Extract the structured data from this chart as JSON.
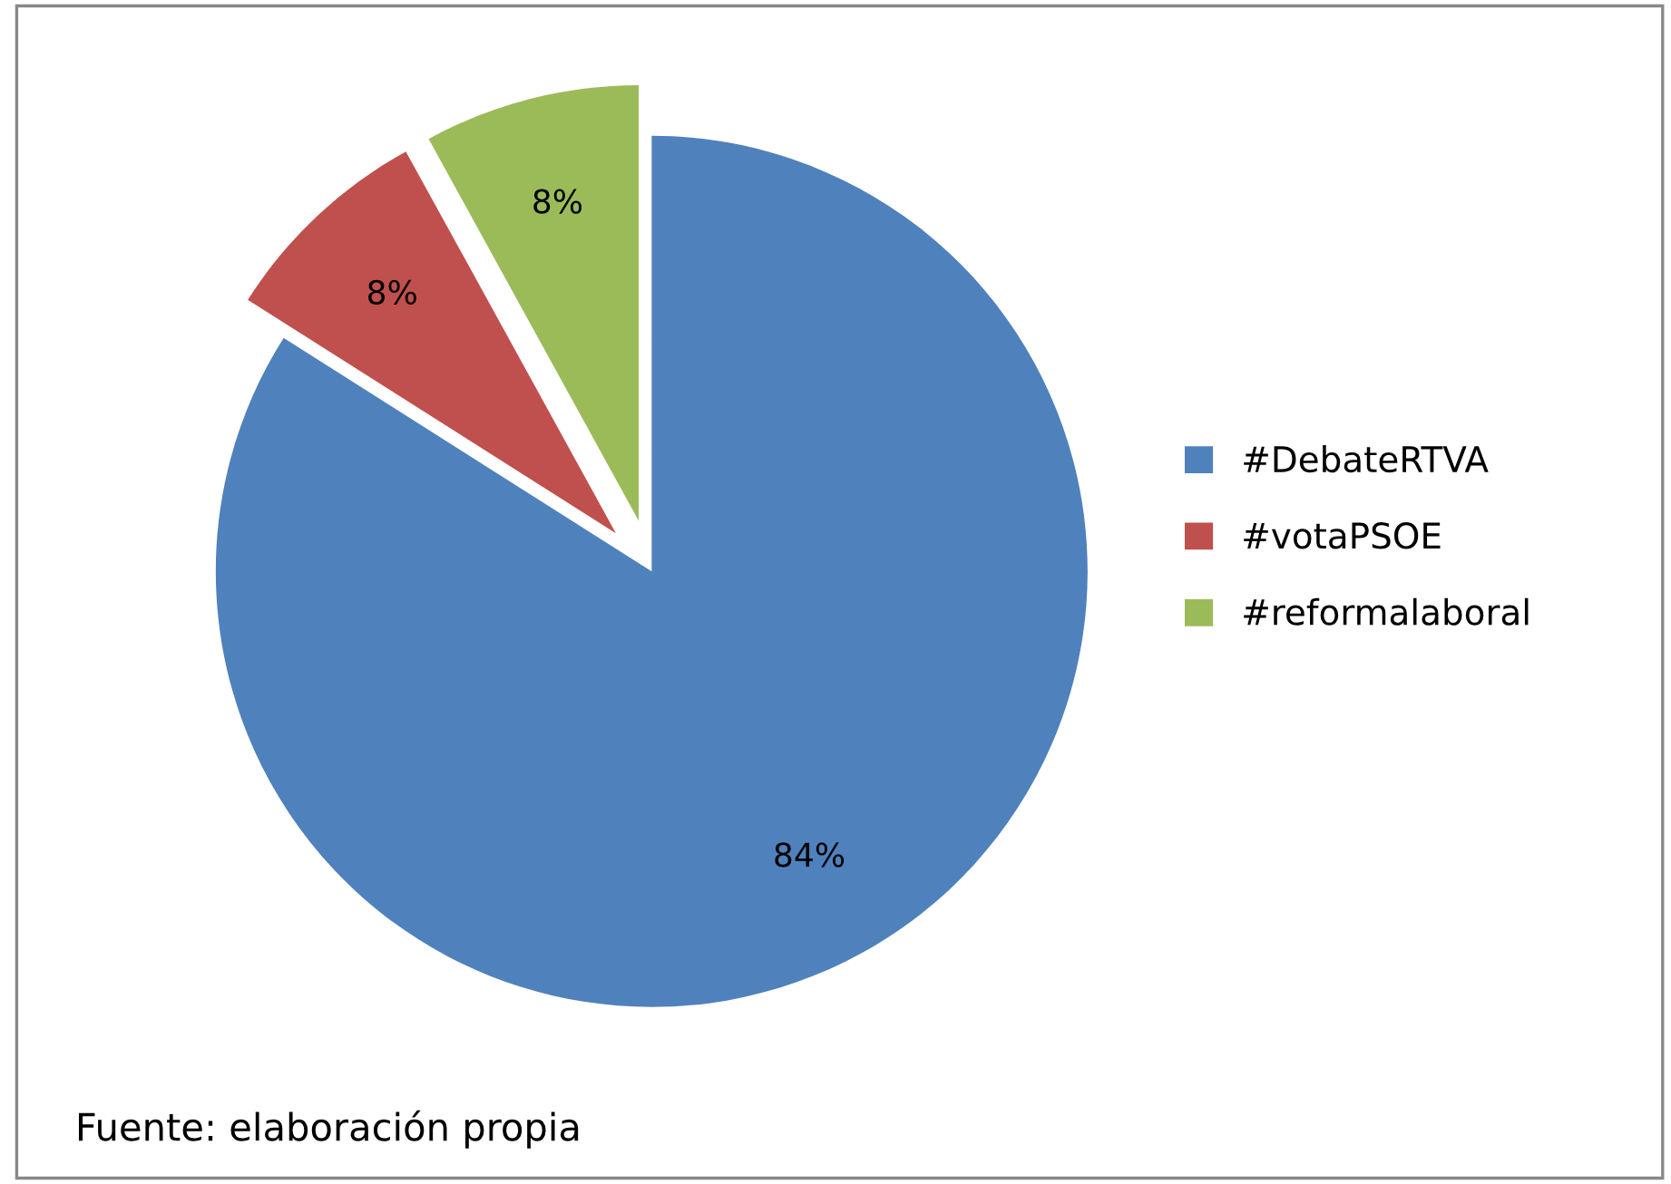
{
  "chart_data": {
    "type": "pie",
    "categories": [
      "#DebateRTVA",
      "#votaPSOE",
      "#reformalaboral"
    ],
    "values": [
      84,
      8,
      8
    ],
    "colors": [
      "#4f81bd",
      "#c0504d",
      "#9bbb59"
    ],
    "value_labels": [
      "84%",
      "8%",
      "8%"
    ],
    "legend": "right",
    "annotations": [
      "Fuente: elaboración propia"
    ]
  }
}
